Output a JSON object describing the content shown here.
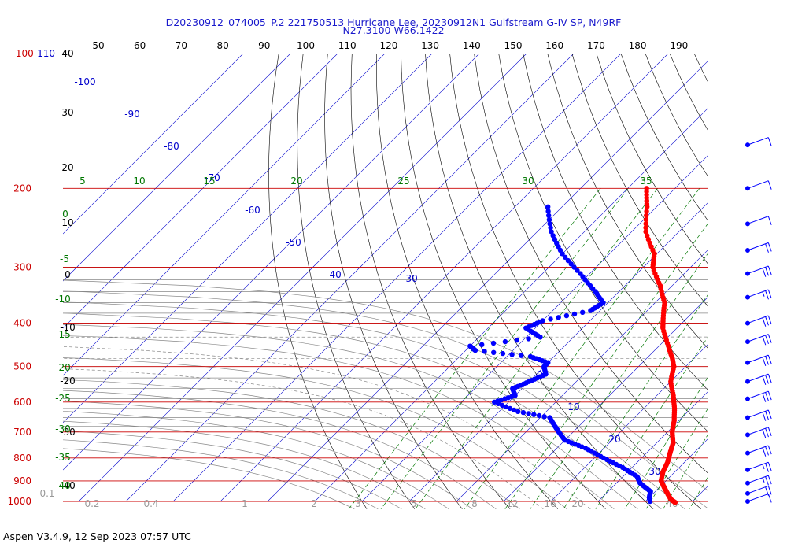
{
  "header": {
    "title_line1": "D20230912_074005_P.2 221750513 Hurricane Lee, 20230912N1 Gulfstream G-IV SP, N49RF",
    "title_line2": "N27.3100 W66.1422"
  },
  "footer": {
    "text": "Aspen V3.4.9, 12 Sep 2023  07:57 UTC"
  },
  "colors": {
    "pressure_lines": "#cc0000",
    "isotherms": "#0000cc",
    "dry_adiabats": "#000000",
    "moist_adiabats": "#888888",
    "mixing_ratio": "#007700",
    "temperature": "#ff0000",
    "dewpoint": "#0000ff",
    "wind_barbs": "#0000ff"
  },
  "chart_data": {
    "type": "skew-t log-p",
    "pressure_axis": {
      "tick_labels": [
        "100-110",
        "200",
        "300",
        "400",
        "500",
        "600",
        "700",
        "800",
        "900",
        "1000"
      ],
      "levels": [
        100,
        200,
        300,
        400,
        500,
        600,
        700,
        800,
        900,
        1000
      ]
    },
    "top_axis": {
      "tick_labels": [
        "50",
        "60",
        "70",
        "80",
        "90",
        "100",
        "110",
        "120",
        "130",
        "140",
        "150",
        "160",
        "170",
        "180",
        "190"
      ]
    },
    "left_axis_left_labels": [
      "40",
      "30",
      "20",
      "10",
      "0",
      "-10",
      "-20",
      "-30",
      "-40"
    ],
    "isotherm_labels": [
      "-100",
      "-90",
      "-80",
      "-70",
      "-60",
      "-50",
      "-40",
      "-30",
      "0",
      "10",
      "20",
      "30"
    ],
    "mixing_ratio_labels": [
      "0.1",
      "0.2",
      "0.4",
      "1",
      "2",
      "3",
      "5",
      "8",
      "12",
      "16",
      "20",
      "40"
    ],
    "wet_bulb_labels": [
      "5",
      "10",
      "15",
      "20",
      "25",
      "30",
      "35",
      "0",
      "-5",
      "-10",
      "-15",
      "-20",
      "-25",
      "-30",
      "-35",
      "-40"
    ],
    "series": [
      {
        "name": "temperature",
        "points": [
          [
            200,
            -46
          ],
          [
            220,
            -42
          ],
          [
            250,
            -37
          ],
          [
            280,
            -30.5
          ],
          [
            300,
            -28
          ],
          [
            330,
            -22.5
          ],
          [
            360,
            -18
          ],
          [
            390,
            -15
          ],
          [
            410,
            -13
          ],
          [
            450,
            -8
          ],
          [
            480,
            -4.5
          ],
          [
            500,
            -2.5
          ],
          [
            540,
            0
          ],
          [
            580,
            3.5
          ],
          [
            620,
            6.5
          ],
          [
            660,
            9
          ],
          [
            700,
            11
          ],
          [
            740,
            13.5
          ],
          [
            780,
            15
          ],
          [
            820,
            16.5
          ],
          [
            860,
            17.5
          ],
          [
            900,
            19
          ],
          [
            930,
            21
          ],
          [
            960,
            23
          ],
          [
            990,
            25
          ],
          [
            1005,
            26.5
          ]
        ]
      },
      {
        "name": "dewpoint",
        "points": [
          [
            220,
            -63
          ],
          [
            250,
            -57
          ],
          [
            280,
            -50
          ],
          [
            310,
            -42
          ],
          [
            340,
            -35
          ],
          [
            360,
            -31
          ],
          [
            375,
            -32
          ],
          [
            395,
            -40
          ],
          [
            410,
            -42
          ],
          [
            430,
            -37
          ],
          [
            450,
            -50
          ],
          [
            460,
            -48
          ],
          [
            475,
            -35
          ],
          [
            490,
            -30
          ],
          [
            500,
            -30
          ],
          [
            520,
            -28
          ],
          [
            540,
            -30
          ],
          [
            560,
            -32
          ],
          [
            580,
            -30
          ],
          [
            600,
            -33
          ],
          [
            630,
            -26
          ],
          [
            650,
            -18
          ],
          [
            680,
            -15
          ],
          [
            700,
            -13
          ],
          [
            730,
            -10
          ],
          [
            760,
            -4
          ],
          [
            800,
            2
          ],
          [
            840,
            8
          ],
          [
            880,
            13
          ],
          [
            910,
            15
          ],
          [
            950,
            19
          ],
          [
            980,
            20
          ],
          [
            1000,
            21
          ]
        ]
      }
    ],
    "wind_barbs": [
      {
        "pressure": 160,
        "speed_kt": 10
      },
      {
        "pressure": 200,
        "speed_kt": 10
      },
      {
        "pressure": 240,
        "speed_kt": 10
      },
      {
        "pressure": 275,
        "speed_kt": 20
      },
      {
        "pressure": 310,
        "speed_kt": 30
      },
      {
        "pressure": 350,
        "speed_kt": 25
      },
      {
        "pressure": 400,
        "speed_kt": 30
      },
      {
        "pressure": 440,
        "speed_kt": 30
      },
      {
        "pressure": 490,
        "speed_kt": 30
      },
      {
        "pressure": 540,
        "speed_kt": 30
      },
      {
        "pressure": 590,
        "speed_kt": 30
      },
      {
        "pressure": 650,
        "speed_kt": 30
      },
      {
        "pressure": 710,
        "speed_kt": 30
      },
      {
        "pressure": 780,
        "speed_kt": 30
      },
      {
        "pressure": 850,
        "speed_kt": 25
      },
      {
        "pressure": 910,
        "speed_kt": 25
      },
      {
        "pressure": 960,
        "speed_kt": 20
      },
      {
        "pressure": 1000,
        "speed_kt": 10
      }
    ]
  }
}
